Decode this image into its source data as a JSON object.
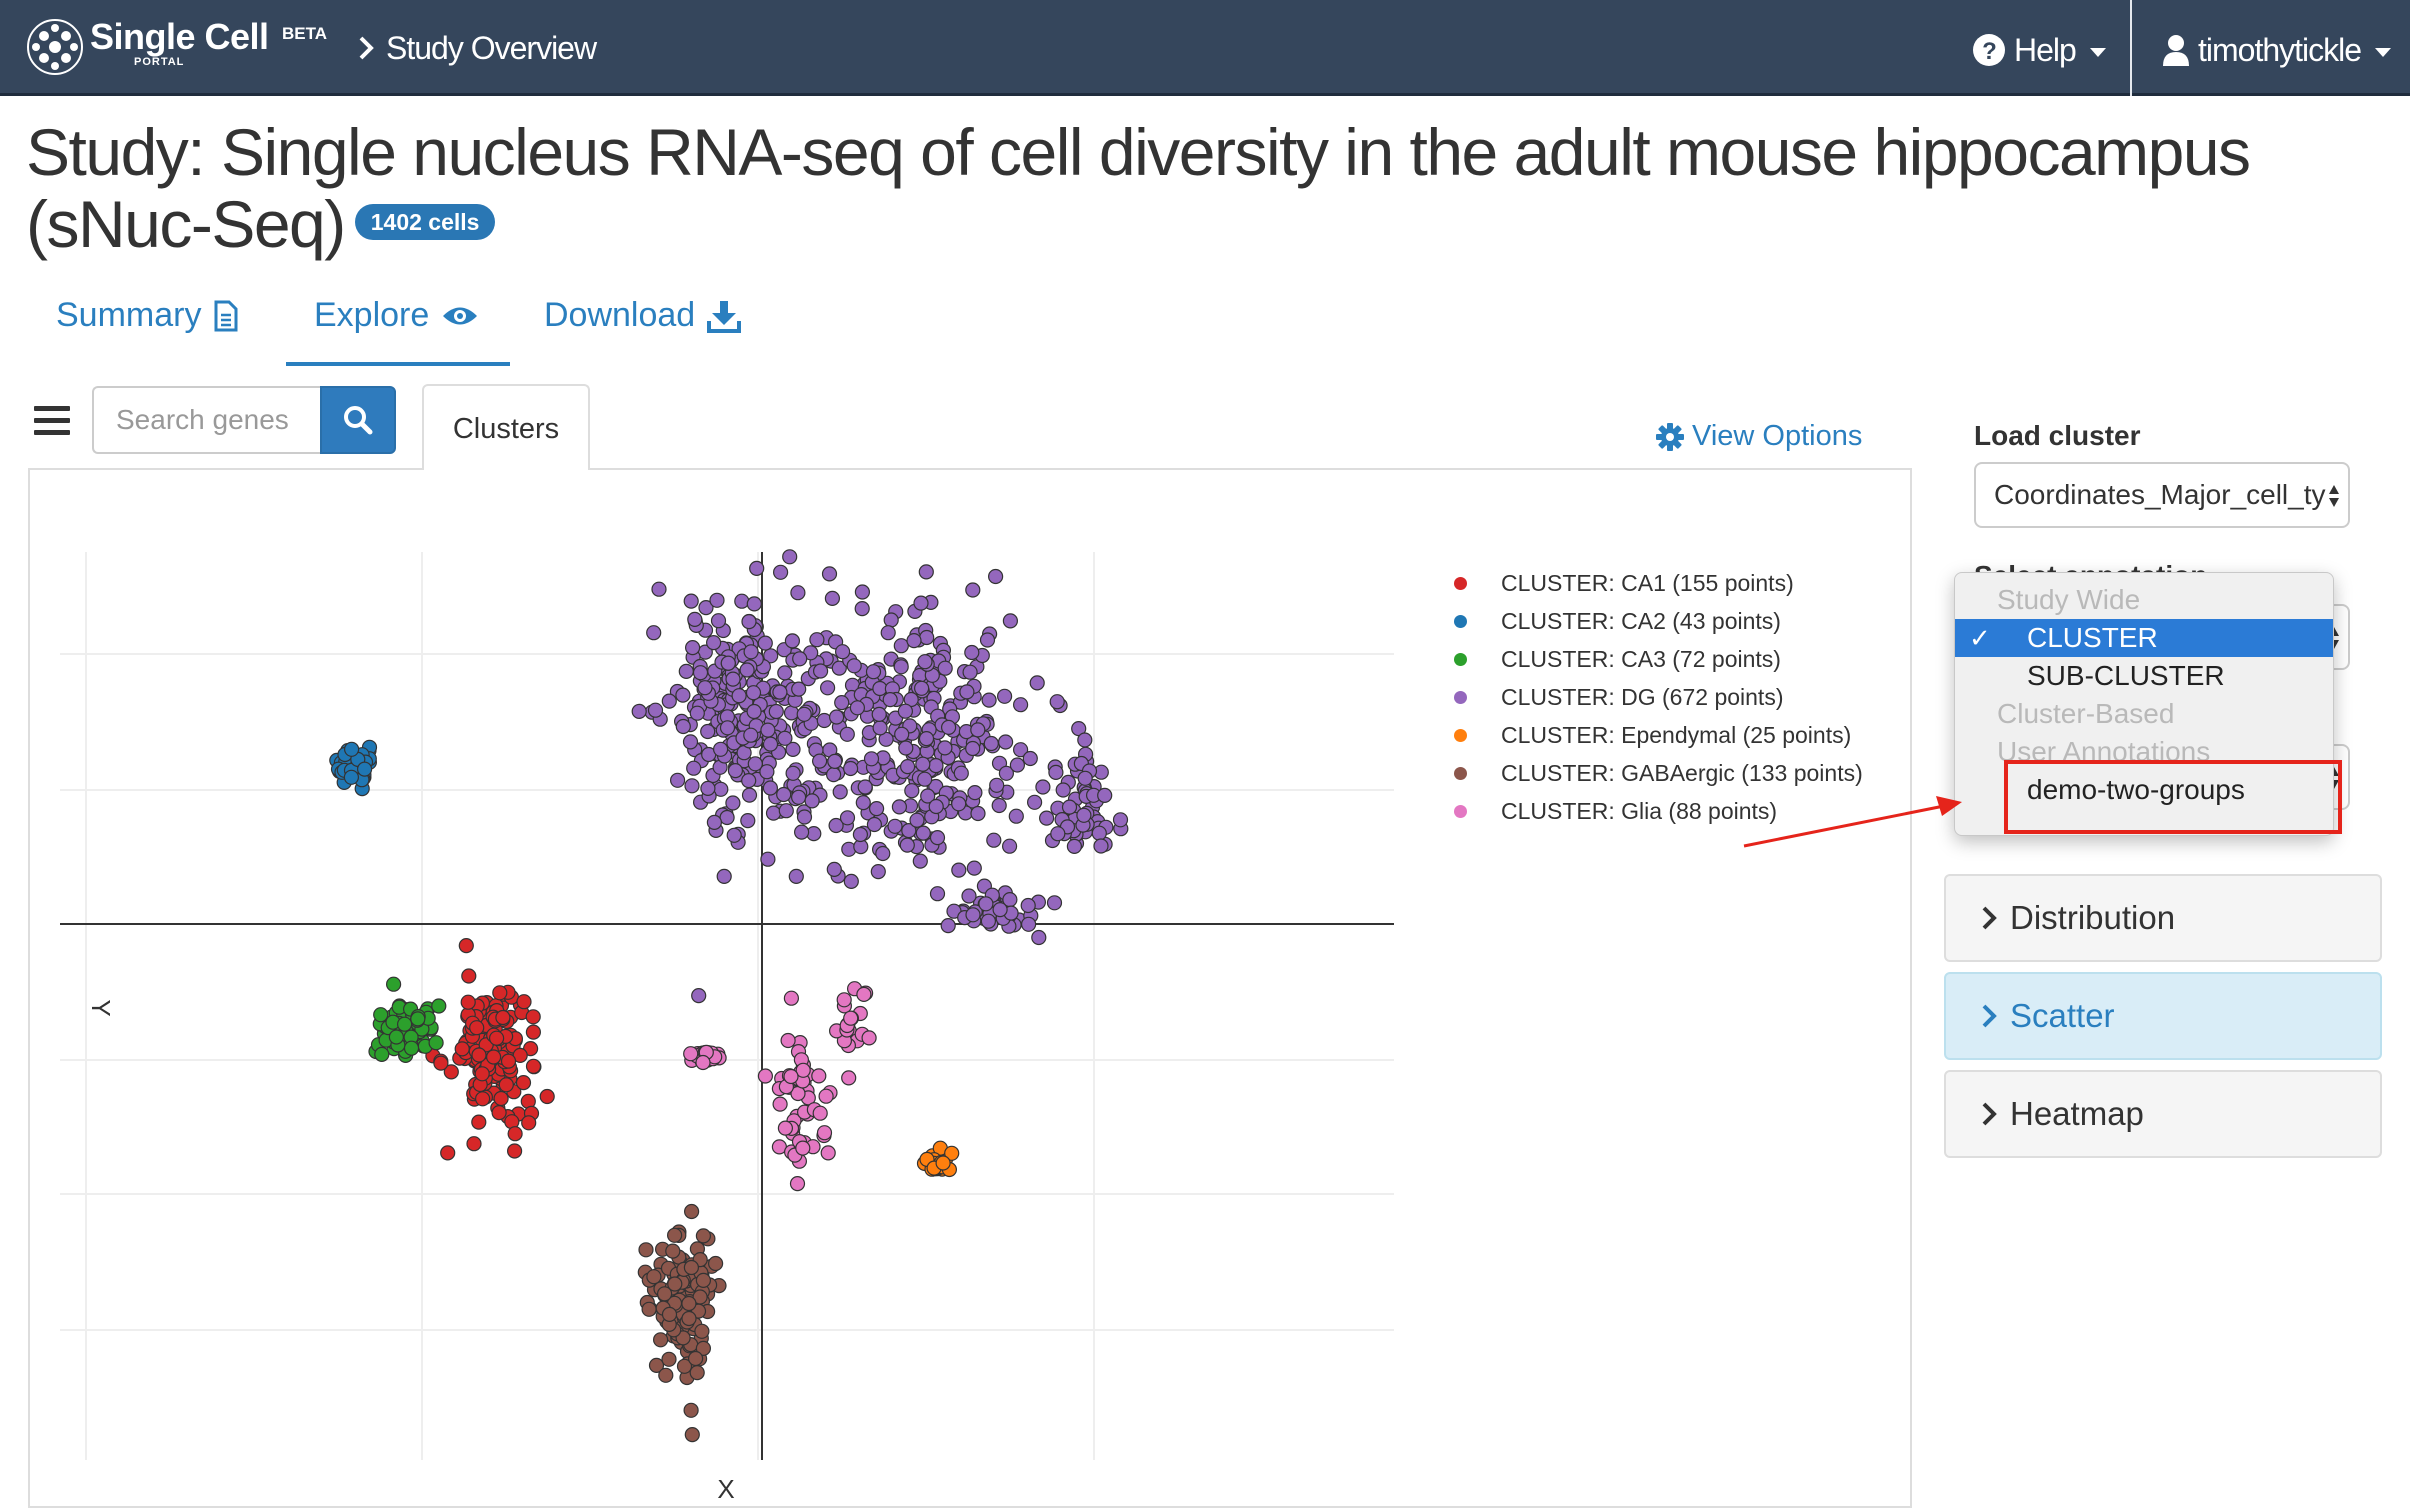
{
  "navbar": {
    "brand": "Single Cell",
    "beta": "BETA",
    "portal": "PORTAL",
    "breadcrumb": "Study Overview",
    "help_label": "Help",
    "user_label": "timothytickle"
  },
  "study": {
    "title": "Study: Single nucleus RNA-seq of cell diversity in the adult mouse hippocampus (sNuc-Seq)",
    "cells_badge": "1402 cells"
  },
  "tabs": [
    {
      "label": "Summary",
      "icon": "document-icon"
    },
    {
      "label": "Explore",
      "icon": "eye-icon",
      "active": true
    },
    {
      "label": "Download",
      "icon": "download-icon"
    }
  ],
  "explore": {
    "search_placeholder": "Search genes",
    "clusters_tab": "Clusters",
    "view_options": "View Options"
  },
  "chart_data": {
    "type": "scatter",
    "xlabel": "X",
    "ylabel": "Y",
    "grid": true,
    "legend_position": "top-right",
    "series": [
      {
        "name": "CLUSTER: CA1 (155 points)",
        "color": "#d62728",
        "count": 155
      },
      {
        "name": "CLUSTER: CA2 (43 points)",
        "color": "#1f77b4",
        "count": 43
      },
      {
        "name": "CLUSTER: CA3 (72 points)",
        "color": "#2ca02c",
        "count": 72
      },
      {
        "name": "CLUSTER: DG (672 points)",
        "color": "#9467bd",
        "count": 672
      },
      {
        "name": "CLUSTER: Ependymal (25 points)",
        "color": "#ff7f0e",
        "count": 25
      },
      {
        "name": "CLUSTER: GABAergic (133 points)",
        "color": "#8c564b",
        "count": 133
      },
      {
        "name": "CLUSTER: Glia (88 points)",
        "color": "#e377c2",
        "count": 88
      }
    ]
  },
  "sidebar": {
    "load_cluster_label": "Load cluster",
    "load_cluster_value": "Coordinates_Major_cell_ty",
    "select_annotation_label": "Select annotation",
    "dropdown": {
      "items": [
        {
          "type": "group",
          "label": "Study Wide"
        },
        {
          "type": "option",
          "label": "CLUSTER",
          "selected": true
        },
        {
          "type": "option",
          "label": "SUB-CLUSTER"
        },
        {
          "type": "group",
          "label": "Cluster-Based"
        },
        {
          "type": "group",
          "label": "User Annotations"
        },
        {
          "type": "option",
          "label": "demo-two-groups"
        }
      ]
    },
    "panels": [
      {
        "label": "Distribution",
        "active": false
      },
      {
        "label": "Scatter",
        "active": true
      },
      {
        "label": "Heatmap",
        "active": false
      }
    ]
  },
  "colors": {
    "navbar": "#35465c",
    "link": "#2a7fbf",
    "badge": "#2a77b4",
    "highlight": "#e5241b",
    "dropdown_selected": "#2b7bd6"
  }
}
